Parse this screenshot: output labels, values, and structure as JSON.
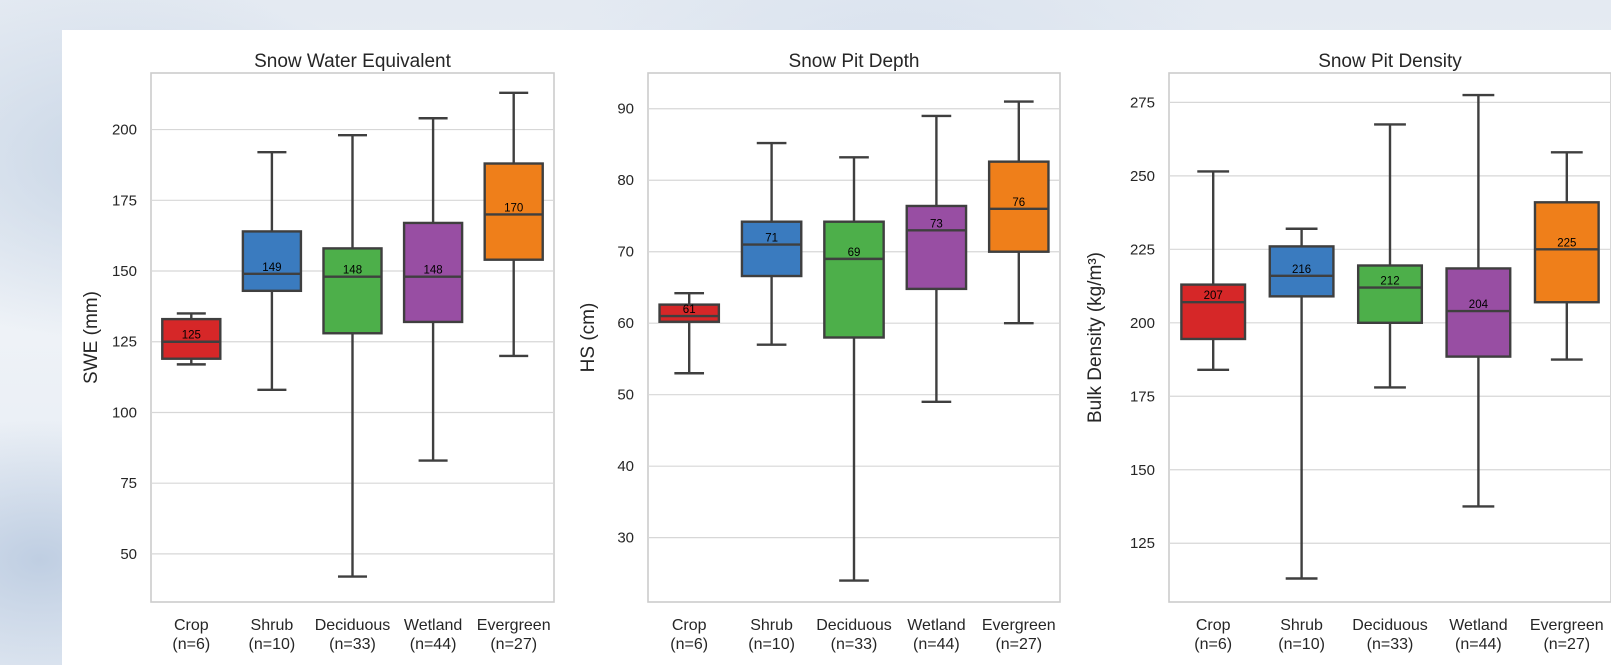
{
  "chart_data": [
    {
      "type": "box",
      "title": "Snow Water Equivalent",
      "ylabel": "SWE (mm)",
      "ylim": [
        33,
        220
      ],
      "yticks": [
        50,
        75,
        100,
        125,
        150,
        175,
        200
      ],
      "categories": [
        {
          "name": "Crop",
          "n_label": "(n=6)",
          "color": "#d62728",
          "whisker_low": 117,
          "q1": 119,
          "median": 125,
          "q3": 133,
          "whisker_high": 135,
          "median_label": "125"
        },
        {
          "name": "Shrub",
          "n_label": "(n=10)",
          "color": "#3a7bbf",
          "whisker_low": 108,
          "q1": 143,
          "median": 149,
          "q3": 164,
          "whisker_high": 192,
          "median_label": "149"
        },
        {
          "name": "Deciduous",
          "n_label": "(n=33)",
          "color": "#4daf4a",
          "whisker_low": 42,
          "q1": 128,
          "median": 148,
          "q3": 158,
          "whisker_high": 198,
          "median_label": "148"
        },
        {
          "name": "Wetland",
          "n_label": "(n=44)",
          "color": "#984ea3",
          "whisker_low": 83,
          "q1": 132,
          "median": 148,
          "q3": 167,
          "whisker_high": 204,
          "median_label": "148"
        },
        {
          "name": "Evergreen",
          "n_label": "(n=27)",
          "color": "#ef7f1a",
          "whisker_low": 120,
          "q1": 154,
          "median": 170,
          "q3": 188,
          "whisker_high": 213,
          "median_label": "170"
        }
      ]
    },
    {
      "type": "box",
      "title": "Snow Pit Depth",
      "ylabel": "HS (cm)",
      "ylim": [
        21,
        95
      ],
      "yticks": [
        30,
        40,
        50,
        60,
        70,
        80,
        90
      ],
      "categories": [
        {
          "name": "Crop",
          "n_label": "(n=6)",
          "color": "#d62728",
          "whisker_low": 53,
          "q1": 60.2,
          "median": 61,
          "q3": 62.6,
          "whisker_high": 64.2,
          "median_label": "61"
        },
        {
          "name": "Shrub",
          "n_label": "(n=10)",
          "color": "#3a7bbf",
          "whisker_low": 57,
          "q1": 66.6,
          "median": 71,
          "q3": 74.2,
          "whisker_high": 85.2,
          "median_label": "71"
        },
        {
          "name": "Deciduous",
          "n_label": "(n=33)",
          "color": "#4daf4a",
          "whisker_low": 24,
          "q1": 58,
          "median": 69,
          "q3": 74.2,
          "whisker_high": 83.2,
          "median_label": "69"
        },
        {
          "name": "Wetland",
          "n_label": "(n=44)",
          "color": "#984ea3",
          "whisker_low": 49,
          "q1": 64.8,
          "median": 73,
          "q3": 76.4,
          "whisker_high": 89,
          "median_label": "73"
        },
        {
          "name": "Evergreen",
          "n_label": "(n=27)",
          "color": "#ef7f1a",
          "whisker_low": 60,
          "q1": 70,
          "median": 76,
          "q3": 82.6,
          "whisker_high": 91,
          "median_label": "76"
        }
      ]
    },
    {
      "type": "box",
      "title": "Snow Pit Density",
      "ylabel": "Bulk Density (kg/m³)",
      "ylim": [
        105,
        285
      ],
      "yticks": [
        125,
        150,
        175,
        200,
        225,
        250,
        275
      ],
      "categories": [
        {
          "name": "Crop",
          "n_label": "(n=6)",
          "color": "#d62728",
          "whisker_low": 184,
          "q1": 194.5,
          "median": 207,
          "q3": 213,
          "whisker_high": 251.5,
          "median_label": "207"
        },
        {
          "name": "Shrub",
          "n_label": "(n=10)",
          "color": "#3a7bbf",
          "whisker_low": 113,
          "q1": 209,
          "median": 216,
          "q3": 226,
          "whisker_high": 232,
          "median_label": "216"
        },
        {
          "name": "Deciduous",
          "n_label": "(n=33)",
          "color": "#4daf4a",
          "whisker_low": 178,
          "q1": 200,
          "median": 212,
          "q3": 219.5,
          "whisker_high": 267.5,
          "median_label": "212"
        },
        {
          "name": "Wetland",
          "n_label": "(n=44)",
          "color": "#984ea3",
          "whisker_low": 137.5,
          "q1": 188.5,
          "median": 204,
          "q3": 218.5,
          "whisker_high": 277.5,
          "median_label": "204"
        },
        {
          "name": "Evergreen",
          "n_label": "(n=27)",
          "color": "#ef7f1a",
          "whisker_low": 187.5,
          "q1": 207,
          "median": 225,
          "q3": 241,
          "whisker_high": 258,
          "median_label": "225"
        }
      ]
    }
  ]
}
